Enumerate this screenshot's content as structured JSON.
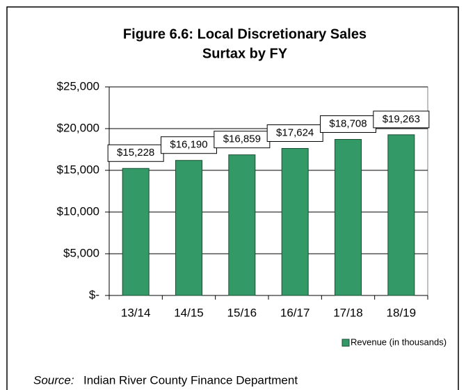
{
  "chart_data": {
    "type": "bar",
    "title": [
      "Figure 6.6: Local Discretionary Sales",
      "Surtax by FY"
    ],
    "categories": [
      "13/14",
      "14/15",
      "15/16",
      "16/17",
      "17/18",
      "18/19"
    ],
    "series": [
      {
        "name": "Revenue (in thousands)",
        "color": "#339966",
        "values": [
          15228,
          16190,
          16859,
          17624,
          18708,
          19263
        ],
        "value_labels": [
          "$15,228",
          "$16,190",
          "$16,859",
          "$17,624",
          "$18,708",
          "$19,263"
        ]
      }
    ],
    "ylim": [
      0,
      25000
    ],
    "yticks": [
      {
        "value": 0,
        "label": "$-"
      },
      {
        "value": 5000,
        "label": "$5,000"
      },
      {
        "value": 10000,
        "label": "$10,000"
      },
      {
        "value": 15000,
        "label": "$15,000"
      },
      {
        "value": 20000,
        "label": "$20,000"
      },
      {
        "value": 25000,
        "label": "$25,000"
      }
    ],
    "grid": true,
    "legend": "bottom-right",
    "source_label": "Source:",
    "source": "Indian River County Finance Department"
  }
}
